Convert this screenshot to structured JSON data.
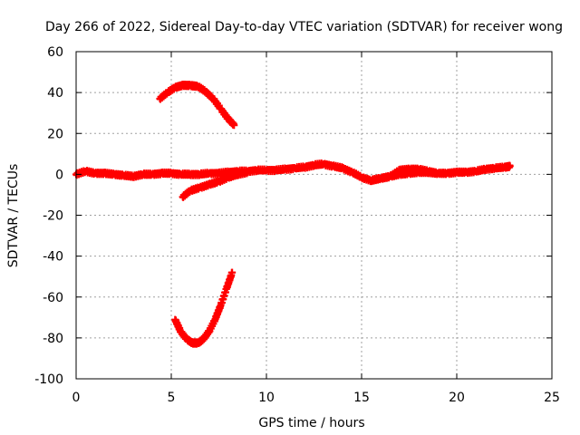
{
  "chart_data": {
    "type": "scatter",
    "title": "Day 266 of 2022, Sidereal Day-to-day VTEC variation (SDTVAR) for receiver wong",
    "xlabel": "GPS time / hours",
    "ylabel": "SDTVAR / TECUs",
    "xlim": [
      0,
      25
    ],
    "ylim": [
      -100,
      60
    ],
    "xticks": [
      0,
      5,
      10,
      15,
      20,
      25
    ],
    "yticks": [
      -100,
      -80,
      -60,
      -40,
      -20,
      0,
      20,
      40,
      60
    ],
    "grid": true,
    "legend": "none",
    "marker": "plus",
    "series_color": "#ff0000",
    "series": [
      {
        "name": "main band",
        "x": [
          0,
          0.5,
          1,
          1.5,
          2,
          2.5,
          3,
          3.5,
          4,
          4.5,
          5,
          5.5,
          6,
          6.5,
          7,
          7.5,
          8,
          8.5,
          9,
          9.5,
          10,
          10.5,
          11,
          11.5,
          12,
          12.5,
          13,
          13.5,
          14,
          14.5,
          15,
          15.5,
          16,
          16.5,
          17,
          17.5,
          18,
          18.5,
          19,
          19.5,
          20,
          20.5,
          21,
          21.5,
          22,
          22.5,
          22.8
        ],
        "y": [
          0,
          1.5,
          0.5,
          0.5,
          0,
          -0.5,
          -1,
          0,
          0,
          0.5,
          0.5,
          0,
          0,
          0,
          0.5,
          0.5,
          1,
          1.5,
          1.5,
          2,
          2,
          2,
          2.5,
          3,
          3.5,
          4.5,
          5,
          4,
          3,
          1,
          -1.5,
          -3,
          -2,
          -1,
          0,
          0.5,
          1,
          1,
          0.5,
          0.5,
          1,
          1,
          1.5,
          2.5,
          3,
          3.5,
          4
        ]
      },
      {
        "name": "spread band",
        "x": [
          15.5,
          16,
          16.5,
          17,
          17.5,
          18,
          18.5,
          19
        ],
        "y": [
          -3,
          -2,
          -1,
          2,
          2.5,
          2.5,
          1.5,
          0.5
        ]
      },
      {
        "name": "high arc",
        "x": [
          4.4,
          4.8,
          5.2,
          5.6,
          6,
          6.4,
          6.8,
          7.2,
          7.6,
          8,
          8.3
        ],
        "y": [
          37,
          40,
          42.5,
          43.5,
          43.5,
          43,
          40.5,
          37,
          32,
          27,
          24
        ]
      },
      {
        "name": "negative branch",
        "x": [
          5.6,
          6,
          6.5,
          7,
          7.5,
          8,
          8.5,
          9
        ],
        "y": [
          -11,
          -8,
          -6.5,
          -5,
          -3.5,
          -1.5,
          0,
          1
        ]
      },
      {
        "name": "low arc",
        "x": [
          5.2,
          5.5,
          5.8,
          6.1,
          6.4,
          6.7,
          7,
          7.3,
          7.6,
          7.9,
          8.2
        ],
        "y": [
          -71,
          -77,
          -80.5,
          -82.5,
          -82.5,
          -80.5,
          -76.5,
          -71,
          -64,
          -56,
          -48
        ]
      }
    ]
  }
}
